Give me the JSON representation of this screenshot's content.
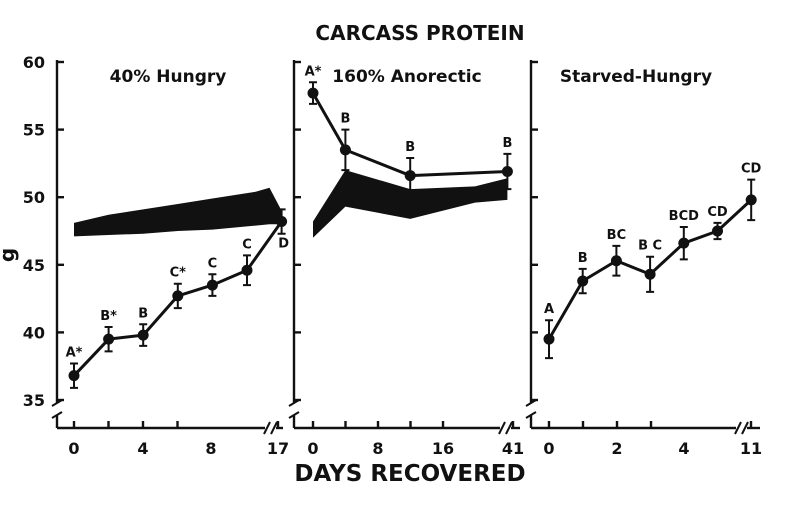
{
  "chart_data": {
    "title": "CARCASS PROTEIN",
    "xlabel": "DAYS RECOVERED",
    "ylabel": "g",
    "y_ticks": [
      "60",
      "55",
      "50",
      "45",
      "40",
      "35"
    ],
    "ylim": [
      33,
      60
    ],
    "panels": [
      {
        "title": "40% Hungry",
        "type": "line",
        "x_tick_labels": [
          "0",
          "4",
          "8",
          "17"
        ],
        "series": [
          {
            "x": [
              0,
              2,
              4,
              6,
              8,
              10,
              12
            ],
            "values": [
              36.8,
              39.5,
              39.8,
              42.7,
              43.5,
              44.6,
              48.2
            ],
            "error": [
              0.9,
              0.9,
              0.8,
              0.9,
              0.8,
              1.1,
              0.9
            ],
            "letters": [
              "A*",
              "B*",
              "B",
              "C*",
              "C",
              "C",
              "D"
            ]
          }
        ],
        "band": {
          "x": [
            0,
            2,
            4,
            6,
            8,
            10.5,
            11.3,
            12
          ],
          "upper": [
            48.1,
            48.7,
            49.1,
            49.5,
            49.9,
            50.4,
            50.7,
            49.0
          ],
          "lower": [
            47.1,
            47.2,
            47.3,
            47.5,
            47.6,
            47.9,
            48.0,
            48.0
          ]
        }
      },
      {
        "title": "160% Anorectic",
        "type": "line",
        "x_tick_labels": [
          "0",
          "8",
          "16",
          "41"
        ],
        "series": [
          {
            "x": [
              0,
              4,
              12,
              24
            ],
            "values": [
              57.7,
              53.5,
              51.6,
              51.9
            ],
            "error": [
              0.8,
              1.5,
              1.3,
              1.3
            ],
            "letters": [
              "A*",
              "B",
              "B",
              "B"
            ]
          }
        ],
        "band": {
          "x": [
            0,
            4,
            12,
            20,
            24
          ],
          "upper": [
            48.2,
            52.0,
            50.6,
            50.8,
            51.4
          ],
          "lower": [
            47.0,
            49.3,
            48.4,
            49.6,
            49.8
          ]
        }
      },
      {
        "title": "Starved-Hungry",
        "type": "line",
        "x_tick_labels": [
          "0",
          "2",
          "4",
          "11"
        ],
        "series": [
          {
            "x": [
              0,
              1,
              2,
              3,
              4,
              5,
              6
            ],
            "values": [
              39.5,
              43.8,
              45.3,
              44.3,
              46.6,
              47.5,
              49.8
            ],
            "error": [
              1.4,
              0.9,
              1.1,
              1.3,
              1.2,
              0.6,
              1.5
            ],
            "letters": [
              "A",
              "B",
              "BC",
              "B C",
              "BCD",
              "CD",
              "CD"
            ]
          }
        ]
      }
    ]
  }
}
